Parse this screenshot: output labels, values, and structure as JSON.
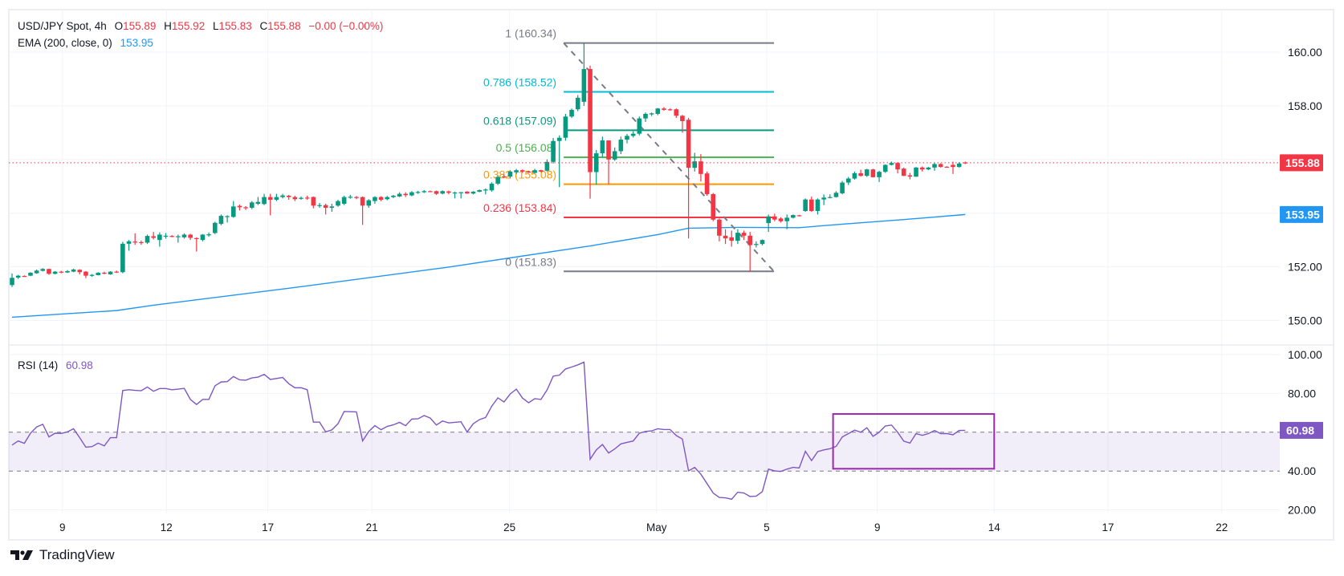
{
  "header": {
    "symbol": "USD/JPY Spot, 4h",
    "open_label": "O",
    "open": "155.89",
    "high_label": "H",
    "high": "155.92",
    "low_label": "L",
    "low": "155.83",
    "close_label": "C",
    "close": "155.88",
    "change": "−0.00 (−0.00%)",
    "ema_label": "EMA (200, close, 0)",
    "ema_value": "153.95",
    "rsi_label": "RSI (14)",
    "rsi_value": "60.98"
  },
  "brand": {
    "name": "TradingView",
    "icon": "tradingview-logo-icon"
  },
  "colors": {
    "up": "#089981",
    "down": "#f23645",
    "ema": "#2196f3",
    "rsi": "#7e57c2",
    "rsi_box": "#9c27b0",
    "grid": "#f0f3fa",
    "text": "#131722"
  },
  "chart_data": {
    "type": "candlestick",
    "title": "USD/JPY Spot, 4h",
    "ylim": [
      149.5,
      160.7
    ],
    "price_axis": {
      "labels": [
        {
          "value": 160,
          "label": "160.00"
        },
        {
          "value": 158,
          "label": "158.00"
        },
        {
          "value": 152,
          "label": "152.00"
        },
        {
          "value": 150,
          "label": "150.00"
        }
      ],
      "gridlines": [
        150,
        152,
        154,
        156,
        158,
        160
      ]
    },
    "time_axis": [
      {
        "bar": 8.2,
        "label": "9"
      },
      {
        "bar": 25.1,
        "label": "12"
      },
      {
        "bar": 41.6,
        "label": "17"
      },
      {
        "bar": 58.5,
        "label": "21"
      },
      {
        "bar": 80.9,
        "label": "25"
      },
      {
        "bar": 104.8,
        "label": "May"
      },
      {
        "bar": 122.7,
        "label": "5"
      },
      {
        "bar": 140.7,
        "label": "9"
      },
      {
        "bar": 159.7,
        "label": "14"
      },
      {
        "bar": 178.2,
        "label": "17"
      },
      {
        "bar": 196.7,
        "label": "22"
      }
    ],
    "candles_format": [
      "open",
      "high",
      "low",
      "close"
    ],
    "candles": [
      [
        151.32,
        151.75,
        151.25,
        151.59
      ],
      [
        151.6,
        151.7,
        151.55,
        151.67
      ],
      [
        151.66,
        151.68,
        151.63,
        151.65
      ],
      [
        151.67,
        151.8,
        151.65,
        151.78
      ],
      [
        151.76,
        151.9,
        151.74,
        151.86
      ],
      [
        151.85,
        151.95,
        151.83,
        151.92
      ],
      [
        151.92,
        151.93,
        151.7,
        151.74
      ],
      [
        151.74,
        151.84,
        151.72,
        151.82
      ],
      [
        151.82,
        151.85,
        151.76,
        151.79
      ],
      [
        151.79,
        151.88,
        151.77,
        151.84
      ],
      [
        151.82,
        151.93,
        151.8,
        151.9
      ],
      [
        151.89,
        151.91,
        151.72,
        151.8
      ],
      [
        151.82,
        151.84,
        151.58,
        151.67
      ],
      [
        151.68,
        151.73,
        151.63,
        151.7
      ],
      [
        151.69,
        151.8,
        151.68,
        151.78
      ],
      [
        151.78,
        151.82,
        151.72,
        151.75
      ],
      [
        151.72,
        151.84,
        151.7,
        151.82
      ],
      [
        151.82,
        151.86,
        151.77,
        151.8
      ],
      [
        151.8,
        152.93,
        151.76,
        152.86
      ],
      [
        152.86,
        153.0,
        152.6,
        152.95
      ],
      [
        152.94,
        153.25,
        152.82,
        152.92
      ],
      [
        152.92,
        152.98,
        152.82,
        152.9
      ],
      [
        152.9,
        153.2,
        152.85,
        153.15
      ],
      [
        153.14,
        153.3,
        153.02,
        153.08
      ],
      [
        153.0,
        153.28,
        152.75,
        153.2
      ],
      [
        153.13,
        153.26,
        153.05,
        153.16
      ],
      [
        153.15,
        153.18,
        153.1,
        153.14
      ],
      [
        153.13,
        153.2,
        152.9,
        153.14
      ],
      [
        153.1,
        153.25,
        153.05,
        153.2
      ],
      [
        153.2,
        153.23,
        153.0,
        153.08
      ],
      [
        153.07,
        153.1,
        152.57,
        153.04
      ],
      [
        153.0,
        153.22,
        152.95,
        153.2
      ],
      [
        153.19,
        153.28,
        153.12,
        153.21
      ],
      [
        153.26,
        153.68,
        153.22,
        153.64
      ],
      [
        153.6,
        153.95,
        153.55,
        153.9
      ],
      [
        153.88,
        153.92,
        153.65,
        153.89
      ],
      [
        153.86,
        154.45,
        153.83,
        154.25
      ],
      [
        154.27,
        154.32,
        154.1,
        154.22
      ],
      [
        154.22,
        154.26,
        154.12,
        154.2
      ],
      [
        154.2,
        154.45,
        154.15,
        154.4
      ],
      [
        154.35,
        154.6,
        154.3,
        154.42
      ],
      [
        154.34,
        154.72,
        154.3,
        154.6
      ],
      [
        154.6,
        154.72,
        153.92,
        154.5
      ],
      [
        154.5,
        154.72,
        154.45,
        154.6
      ],
      [
        154.6,
        154.72,
        154.55,
        154.66
      ],
      [
        154.65,
        154.68,
        154.5,
        154.6
      ],
      [
        154.6,
        154.65,
        154.45,
        154.52
      ],
      [
        154.57,
        154.62,
        154.5,
        154.57
      ],
      [
        154.58,
        154.65,
        154.5,
        154.57
      ],
      [
        154.6,
        154.62,
        154.18,
        154.28
      ],
      [
        154.3,
        154.38,
        154.2,
        154.3
      ],
      [
        154.3,
        154.35,
        153.95,
        154.2
      ],
      [
        154.2,
        154.35,
        154.05,
        154.25
      ],
      [
        154.28,
        154.5,
        154.24,
        154.45
      ],
      [
        154.35,
        154.65,
        154.3,
        154.6
      ],
      [
        154.6,
        154.68,
        154.54,
        154.61
      ],
      [
        154.6,
        154.64,
        154.52,
        154.58
      ],
      [
        154.6,
        154.62,
        153.56,
        154.28
      ],
      [
        154.28,
        154.52,
        154.2,
        154.48
      ],
      [
        154.45,
        154.63,
        154.35,
        154.6
      ],
      [
        154.6,
        154.63,
        154.45,
        154.5
      ],
      [
        154.52,
        154.64,
        154.48,
        154.6
      ],
      [
        154.6,
        154.68,
        154.56,
        154.65
      ],
      [
        154.62,
        154.78,
        154.6,
        154.72
      ],
      [
        154.72,
        154.78,
        154.6,
        154.67
      ],
      [
        154.66,
        154.82,
        154.63,
        154.78
      ],
      [
        154.78,
        154.83,
        154.72,
        154.79
      ],
      [
        154.78,
        154.86,
        154.75,
        154.82
      ],
      [
        154.82,
        154.84,
        154.78,
        154.81
      ],
      [
        154.82,
        154.84,
        154.68,
        154.72
      ],
      [
        154.73,
        154.85,
        154.7,
        154.82
      ],
      [
        154.81,
        154.84,
        154.7,
        154.76
      ],
      [
        154.75,
        154.8,
        154.55,
        154.77
      ],
      [
        154.76,
        154.79,
        154.55,
        154.78
      ],
      [
        154.8,
        154.82,
        154.72,
        154.73
      ],
      [
        154.73,
        154.82,
        154.7,
        154.8
      ],
      [
        154.8,
        154.88,
        154.78,
        154.86
      ],
      [
        154.86,
        154.92,
        154.7,
        154.88
      ],
      [
        154.85,
        155.15,
        154.8,
        155.1
      ],
      [
        155.1,
        155.4,
        155.05,
        155.35
      ],
      [
        155.37,
        155.45,
        155.3,
        155.34
      ],
      [
        155.36,
        155.6,
        155.3,
        155.55
      ],
      [
        155.52,
        155.65,
        155.45,
        155.6
      ],
      [
        155.6,
        155.63,
        155.5,
        155.55
      ],
      [
        155.55,
        155.58,
        155.5,
        155.54
      ],
      [
        155.5,
        155.65,
        155.48,
        155.6
      ],
      [
        155.6,
        155.62,
        155.52,
        155.55
      ],
      [
        155.58,
        156.0,
        155.55,
        155.91
      ],
      [
        155.91,
        156.8,
        155.85,
        156.69
      ],
      [
        156.69,
        156.9,
        154.97,
        156.81
      ],
      [
        156.81,
        157.7,
        156.7,
        157.6
      ],
      [
        157.6,
        157.9,
        157.55,
        157.85
      ],
      [
        157.87,
        158.4,
        157.8,
        158.3
      ],
      [
        158.15,
        160.34,
        158.0,
        159.37
      ],
      [
        159.37,
        159.5,
        154.54,
        155.53
      ],
      [
        155.53,
        156.35,
        155.06,
        156.23
      ],
      [
        156.23,
        156.85,
        156.1,
        156.71
      ],
      [
        156.71,
        156.71,
        155.08,
        156.0
      ],
      [
        156.0,
        156.45,
        155.95,
        156.31
      ],
      [
        156.31,
        156.85,
        156.2,
        156.74
      ],
      [
        156.74,
        156.95,
        156.6,
        156.88
      ],
      [
        156.88,
        157.05,
        156.82,
        156.96
      ],
      [
        156.96,
        157.6,
        156.9,
        157.53
      ],
      [
        157.53,
        157.75,
        157.4,
        157.7
      ],
      [
        157.68,
        157.75,
        157.62,
        157.72
      ],
      [
        157.7,
        157.92,
        157.65,
        157.9
      ],
      [
        157.9,
        157.95,
        157.82,
        157.85
      ],
      [
        157.87,
        157.9,
        157.82,
        157.86
      ],
      [
        157.87,
        157.9,
        157.55,
        157.63
      ],
      [
        157.63,
        157.66,
        157.0,
        157.43
      ],
      [
        157.48,
        157.55,
        153.06,
        155.69
      ],
      [
        155.69,
        156.25,
        155.55,
        155.93
      ],
      [
        155.93,
        156.2,
        155.18,
        155.46
      ],
      [
        155.48,
        155.55,
        154.65,
        154.71
      ],
      [
        154.71,
        154.75,
        153.7,
        153.76
      ],
      [
        153.76,
        153.8,
        152.95,
        153.16
      ],
      [
        153.16,
        153.4,
        152.85,
        153.06
      ],
      [
        153.1,
        153.35,
        152.75,
        152.97
      ],
      [
        152.97,
        153.4,
        152.85,
        153.27
      ],
      [
        153.27,
        153.35,
        153.0,
        153.16
      ],
      [
        153.16,
        153.3,
        151.83,
        152.81
      ],
      [
        152.82,
        152.95,
        152.72,
        152.85
      ],
      [
        152.85,
        153.02,
        152.8,
        153.0
      ],
      [
        153.63,
        153.95,
        153.3,
        153.88
      ],
      [
        153.88,
        153.98,
        153.7,
        153.76
      ],
      [
        153.8,
        153.85,
        153.65,
        153.7
      ],
      [
        153.7,
        153.95,
        153.4,
        153.83
      ],
      [
        153.83,
        153.95,
        153.8,
        153.93
      ],
      [
        153.92,
        153.94,
        153.88,
        153.89
      ],
      [
        154.08,
        154.55,
        154.05,
        154.51
      ],
      [
        154.51,
        154.62,
        154.05,
        154.08
      ],
      [
        154.08,
        154.55,
        153.95,
        154.51
      ],
      [
        154.51,
        154.7,
        154.3,
        154.58
      ],
      [
        154.58,
        154.7,
        154.55,
        154.6
      ],
      [
        154.6,
        154.82,
        154.58,
        154.76
      ],
      [
        154.74,
        155.2,
        154.7,
        155.14
      ],
      [
        155.14,
        155.35,
        155.05,
        155.29
      ],
      [
        155.29,
        155.55,
        155.25,
        155.49
      ],
      [
        155.49,
        155.62,
        155.36,
        155.39
      ],
      [
        155.39,
        155.65,
        155.35,
        155.63
      ],
      [
        155.63,
        155.65,
        155.33,
        155.34
      ],
      [
        155.34,
        155.58,
        155.16,
        155.54
      ],
      [
        155.54,
        155.82,
        155.5,
        155.8
      ],
      [
        155.8,
        155.92,
        155.78,
        155.87
      ],
      [
        155.87,
        155.9,
        155.48,
        155.63
      ],
      [
        155.66,
        155.7,
        155.38,
        155.39
      ],
      [
        155.41,
        155.5,
        155.26,
        155.36
      ],
      [
        155.36,
        155.72,
        155.35,
        155.7
      ],
      [
        155.7,
        155.74,
        155.55,
        155.63
      ],
      [
        155.63,
        155.72,
        155.6,
        155.7
      ],
      [
        155.7,
        155.89,
        155.58,
        155.83
      ],
      [
        155.83,
        155.86,
        155.7,
        155.72
      ],
      [
        155.73,
        155.75,
        155.7,
        155.72
      ],
      [
        155.8,
        155.92,
        155.46,
        155.72
      ],
      [
        155.72,
        155.9,
        155.7,
        155.85
      ],
      [
        155.89,
        155.92,
        155.83,
        155.88
      ]
    ],
    "last_price": {
      "value": 155.88,
      "label": "155.88"
    },
    "ema": {
      "name": "EMA (200, close, 0)",
      "label": "153.95",
      "points": [
        [
          0,
          150.12
        ],
        [
          17,
          150.37
        ],
        [
          23,
          150.57
        ],
        [
          45,
          151.2
        ],
        [
          71,
          151.99
        ],
        [
          94,
          152.78
        ],
        [
          105,
          153.2
        ],
        [
          110,
          153.44
        ],
        [
          118,
          153.47
        ],
        [
          128,
          153.46
        ],
        [
          135,
          153.59
        ],
        [
          145,
          153.76
        ],
        [
          155,
          153.95
        ]
      ]
    },
    "fibonacci": {
      "start_bar": 89.7,
      "end_bar": 123.9,
      "trend": {
        "from": 160.34,
        "to": 151.83
      },
      "levels": [
        {
          "ratio": 1,
          "price": 160.34,
          "label": "1 (160.34)",
          "color": "#787b86"
        },
        {
          "ratio": 0.786,
          "price": 158.52,
          "label": "0.786 (158.52)",
          "color": "#00bcd4"
        },
        {
          "ratio": 0.618,
          "price": 157.09,
          "label": "0.618 (157.09)",
          "color": "#089981"
        },
        {
          "ratio": 0.5,
          "price": 156.08,
          "label": "0.5 (156.08)",
          "color": "#4caf50"
        },
        {
          "ratio": 0.382,
          "price": 155.08,
          "label": "0.382 (155.08)",
          "color": "#ff9800"
        },
        {
          "ratio": 0.236,
          "price": 153.84,
          "label": "0.236 (153.84)",
          "color": "#f23645"
        },
        {
          "ratio": 0,
          "price": 151.83,
          "label": "0 (151.83)",
          "color": "#787b86"
        }
      ]
    },
    "rsi": {
      "name": "RSI (14)",
      "ylim": [
        20,
        100
      ],
      "axis_labels": [
        {
          "value": 100,
          "label": "100.00"
        },
        {
          "value": 80,
          "label": "80.00"
        },
        {
          "value": 40,
          "label": "40.00"
        },
        {
          "value": 20,
          "label": "20.00"
        }
      ],
      "bands": {
        "upper": 60,
        "lower": 40
      },
      "last": {
        "value": 60.98,
        "label": "60.98"
      },
      "values": [
        53.4,
        55.5,
        54.3,
        59.5,
        62.7,
        64.1,
        57.6,
        59.5,
        59.4,
        60.2,
        61.8,
        57.2,
        52.3,
        52.6,
        54.4,
        53.0,
        57.2,
        57.2,
        81.5,
        81.9,
        81.6,
        81.4,
        83.3,
        81.1,
        82.5,
        82.5,
        81.9,
        82.2,
        82.6,
        76.9,
        74.3,
        76.9,
        76.9,
        83.9,
        85.9,
        86.1,
        88.7,
        87.0,
        86.8,
        88.0,
        88.4,
        89.8,
        87.2,
        87.7,
        88.2,
        85.0,
        82.9,
        82.9,
        81.9,
        65.2,
        65.2,
        60.2,
        61.2,
        64.4,
        70.7,
        70.6,
        70.5,
        55.5,
        60.4,
        63.4,
        61.3,
        63.0,
        63.8,
        65.1,
        63.4,
        66.8,
        66.9,
        68.6,
        67.3,
        63.7,
        65.8,
        64.8,
        65.1,
        65.4,
        60.1,
        64.4,
        66.5,
        67.6,
        73.4,
        77.7,
        75.6,
        79.7,
        82.2,
        77.6,
        75.2,
        77.3,
        76.9,
        81.8,
        88.9,
        89.4,
        92.6,
        93.6,
        94.7,
        96.1,
        46.1,
        50.9,
        53.7,
        49.3,
        51.4,
        54.0,
        54.8,
        55.5,
        59.5,
        60.4,
        60.7,
        61.8,
        61.4,
        61.4,
        58.3,
        56.5,
        40.1,
        41.9,
        38.4,
        33.6,
        28.7,
        26.4,
        26.2,
        25.5,
        29.1,
        28.7,
        26.9,
        27.1,
        29.4,
        41.0,
        40.1,
        39.8,
        41.0,
        41.9,
        41.6,
        50.2,
        45.4,
        50.0,
        50.9,
        51.5,
        52.7,
        57.6,
        59.3,
        61.1,
        60.0,
        62.3,
        57.9,
        60.0,
        63.2,
        63.7,
        60.0,
        55.4,
        54.4,
        59.3,
        58.4,
        59.3,
        60.9,
        59.3,
        59.3,
        58.7,
        60.9,
        60.98
      ],
      "highlight_box": {
        "from_bar": 133.5,
        "to_bar": 159.7,
        "top": 69.4,
        "bottom": 41.2
      }
    }
  }
}
